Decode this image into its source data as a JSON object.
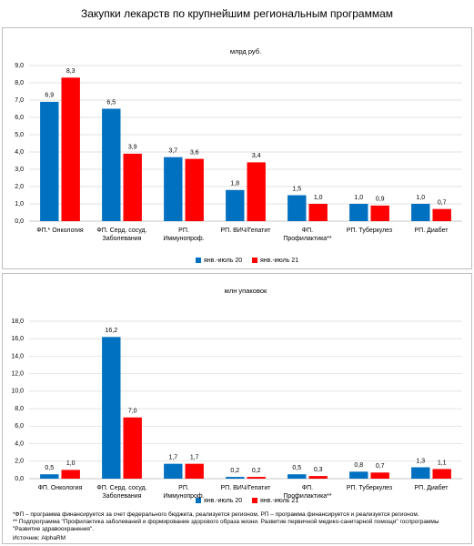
{
  "title": "Закупки лекарств по крупнейшим региональным программам",
  "chart_data": [
    {
      "type": "bar",
      "subtitle": "млрд руб.",
      "categories": [
        "ФП.* Онкология",
        "ФП. Серд. сосуд. Заболевания",
        "РП. Иммунопроф.",
        "РП. ВИЧ/Гепатит",
        "ФП. Профилактика**",
        "РП. Туберкулез",
        "РП. Диабет"
      ],
      "series": [
        {
          "name": "янв.-июль 20",
          "color": "#0070c0",
          "values": [
            6.9,
            6.5,
            3.7,
            1.8,
            1.5,
            1.0,
            1.0
          ],
          "value_labels": [
            "6,9",
            "6,5",
            "3,7",
            "1,8",
            "1,5",
            "1,0",
            "1,0"
          ]
        },
        {
          "name": "янв.-июль 21",
          "color": "#ff0000",
          "values": [
            8.3,
            3.9,
            3.6,
            3.4,
            1.0,
            0.9,
            0.7
          ],
          "value_labels": [
            "8,3",
            "3,9",
            "3,6",
            "3,4",
            "1,0",
            "0,9",
            "0,7"
          ]
        }
      ],
      "ylim": [
        0,
        9
      ],
      "yticks": [
        {
          "value": 0,
          "label": "0,0"
        },
        {
          "value": 1,
          "label": "1,0"
        },
        {
          "value": 2,
          "label": "2,0"
        },
        {
          "value": 3,
          "label": "3,0"
        },
        {
          "value": 4,
          "label": "4,0"
        },
        {
          "value": 5,
          "label": "5,0"
        },
        {
          "value": 6,
          "label": "6,0"
        },
        {
          "value": 7,
          "label": "7,0"
        },
        {
          "value": 8,
          "label": "8,0"
        },
        {
          "value": 9,
          "label": "9,0"
        }
      ],
      "grid": true,
      "legend": "bottom"
    },
    {
      "type": "bar",
      "subtitle": "млн упаковок",
      "categories": [
        "ФП. Онкология",
        "ФП. Серд. сосуд. Заболевания",
        "РП. Иммунопроф.",
        "РП. ВИЧ/Гепатит",
        "ФП. Профилактика**",
        "РП. Туберкулез",
        "РП. Диабет"
      ],
      "series": [
        {
          "name": "янв.-июль 20",
          "color": "#0070c0",
          "values": [
            0.5,
            16.2,
            1.7,
            0.2,
            0.5,
            0.8,
            1.3
          ],
          "value_labels": [
            "0,5",
            "16,2",
            "1,7",
            "0,2",
            "0,5",
            "0,8",
            "1,3"
          ]
        },
        {
          "name": "янв.-июль 21",
          "color": "#ff0000",
          "values": [
            1.0,
            7.0,
            1.7,
            0.2,
            0.3,
            0.7,
            1.1
          ],
          "value_labels": [
            "1,0",
            "7,0",
            "1,7",
            "0,2",
            "0,3",
            "0,7",
            "1,1"
          ]
        }
      ],
      "ylim": [
        0,
        18
      ],
      "yticks": [
        {
          "value": 0,
          "label": "0,0"
        },
        {
          "value": 2,
          "label": "2,0"
        },
        {
          "value": 4,
          "label": "4,0"
        },
        {
          "value": 6,
          "label": "6,0"
        },
        {
          "value": 8,
          "label": "8,0"
        },
        {
          "value": 10,
          "label": "10,0"
        },
        {
          "value": 12,
          "label": "12,0"
        },
        {
          "value": 14,
          "label": "14,0"
        },
        {
          "value": 16,
          "label": "16,0"
        },
        {
          "value": 18,
          "label": "18,0"
        }
      ],
      "grid": true,
      "legend": "bottom"
    }
  ],
  "footnotes": [
    "*ФП – программа финансируется за счет федерального бюджета,  реализуется регионом, РП – программа финансируется  и реализуется регионом.",
    "**  Подпрограмма \"Профилактика заболеваний и формирование здорового образа жизни. Развитие первичной медико-санитарной помощи\" госпрограммы \"Развитие здравоохранения\"."
  ],
  "source": "Источник: AlphaRM"
}
